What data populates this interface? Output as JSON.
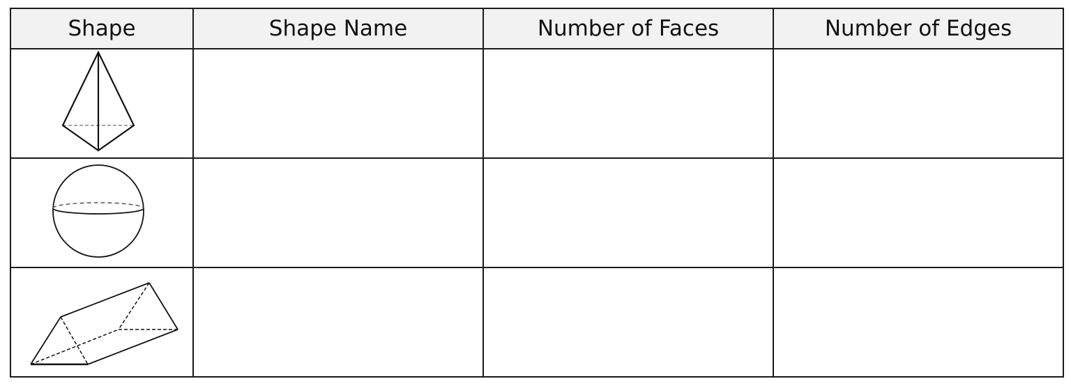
{
  "table": {
    "headers": [
      "Shape",
      "Shape Name",
      "Number of Faces",
      "Number of Edges"
    ],
    "rows": [
      {
        "shape_icon": "triangular-pyramid-icon",
        "name": "",
        "faces": "",
        "edges": ""
      },
      {
        "shape_icon": "sphere-icon",
        "name": "",
        "faces": "",
        "edges": ""
      },
      {
        "shape_icon": "triangular-prism-icon",
        "name": "",
        "faces": "",
        "edges": ""
      }
    ]
  }
}
